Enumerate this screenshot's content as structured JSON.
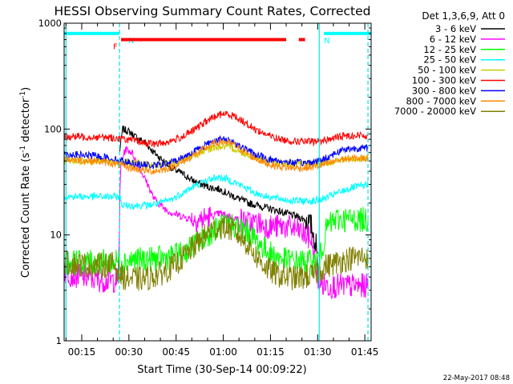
{
  "chart_data": {
    "type": "line",
    "title": "HESSI Observing Summary Count Rates, Corrected",
    "xlabel": "Start Time (30-Sep-14 00:09:22)",
    "ylabel_main": "Corrected Count Rate (s",
    "ylabel_sup1": "-1",
    "ylabel_mid": " detector",
    "ylabel_sup2": "-1",
    "ylabel_end": ")",
    "y_scale": "log",
    "ylim": [
      1,
      1000
    ],
    "xlim_minutes": [
      9.4,
      107.0
    ],
    "grid": false,
    "legend_placement": "right",
    "legend_header": "Det 1,3,6,9, Att 0",
    "footer_date": "22-May-2017 08:48",
    "x_ticks": [
      {
        "minute": 15,
        "label": "00:15"
      },
      {
        "minute": 30,
        "label": "00:30"
      },
      {
        "minute": 45,
        "label": "00:45"
      },
      {
        "minute": 60,
        "label": "01:00"
      },
      {
        "minute": 75,
        "label": "01:15"
      },
      {
        "minute": 90,
        "label": "01:30"
      },
      {
        "minute": 105,
        "label": "01:45"
      }
    ],
    "y_ticks": [
      {
        "value": 1,
        "label": "1"
      },
      {
        "value": 10,
        "label": "10"
      },
      {
        "value": 100,
        "label": "100"
      },
      {
        "value": 1000,
        "label": "1000"
      }
    ],
    "flags": [
      {
        "label": "N",
        "color": "#00ffff",
        "x_start": 9.4,
        "x_end": 27.0,
        "level": 800
      },
      {
        "label": "N",
        "color": "#00ffff",
        "x_start": 92.0,
        "x_end": 107.0,
        "level": 800
      },
      {
        "label": "F",
        "color": "#ff0000",
        "x_start": 27.5,
        "x_end": 80.0,
        "level": 700
      },
      {
        "label": "",
        "color": "#ff0000",
        "x_start": 84.0,
        "x_end": 86.0,
        "level": 700
      }
    ],
    "vertical_markers": [
      {
        "minute": 10.0,
        "style": "solid"
      },
      {
        "minute": 27.0,
        "style": "dashed"
      },
      {
        "minute": 90.5,
        "style": "solid"
      },
      {
        "minute": 106.0,
        "style": "dashed"
      }
    ],
    "series": [
      {
        "name": "3 - 6 keV",
        "color": "#000000",
        "x": [
          27.0,
          28.0,
          30.0,
          32.0,
          35.0,
          38.0,
          41.0,
          44.0,
          47.0,
          50.0,
          53.0,
          56.0,
          59.0,
          62.0,
          65.0,
          68.0,
          71.0,
          74.0,
          77.0,
          80.0,
          83.0,
          86.0,
          88.0,
          89.5,
          90.5
        ],
        "y": [
          60,
          100,
          95,
          85,
          75,
          60,
          50,
          42,
          38,
          33,
          30,
          28,
          27,
          24,
          22,
          20,
          19,
          18,
          17,
          16,
          15,
          14,
          12,
          8,
          3
        ]
      },
      {
        "name": "6 - 12 keV",
        "color": "#ff00ff",
        "x": [
          9.4,
          12.0,
          16.0,
          20.0,
          24.0,
          26.5,
          27.5,
          29.0,
          31.0,
          33.0,
          36.0,
          38.0,
          41.0,
          44.0,
          47.0,
          50.0,
          53.0,
          56.0,
          59.0,
          62.0,
          65.0,
          68.0,
          71.0,
          74.0,
          77.0,
          80.0,
          84.0,
          88.0,
          90.0,
          91.0,
          94.0,
          98.0,
          102.0,
          106.0
        ],
        "y": [
          4.5,
          4.2,
          4.0,
          3.8,
          3.7,
          3.8,
          50,
          65,
          60,
          45,
          30,
          22,
          18,
          16,
          15,
          14,
          14,
          15,
          16,
          15,
          14,
          13,
          13,
          12,
          12,
          12,
          11,
          9,
          4,
          3.4,
          3.3,
          3.3,
          3.3,
          3.3
        ]
      },
      {
        "name": "12 - 25 keV",
        "color": "#00ff00",
        "x": [
          9.4,
          13.0,
          17.0,
          21.0,
          25.0,
          28.0,
          32.0,
          36.0,
          40.0,
          44.0,
          48.0,
          52.0,
          56.0,
          59.0,
          62.0,
          65.0,
          68.0,
          71.0,
          74.0,
          77.0,
          80.0,
          83.0,
          86.0,
          89.0,
          91.0,
          93.0,
          96.0,
          100.0,
          104.0,
          106.0
        ],
        "y": [
          5.5,
          5.5,
          5.5,
          5.6,
          5.6,
          5.7,
          5.8,
          5.9,
          6.0,
          6.2,
          7.0,
          8.5,
          10.5,
          12.0,
          12.5,
          12.0,
          10.5,
          8.5,
          7.0,
          6.2,
          5.8,
          5.6,
          5.6,
          5.5,
          6.5,
          12,
          14,
          14,
          14,
          14
        ]
      },
      {
        "name": "25 - 50 keV",
        "color": "#00ffff",
        "x": [
          9.4,
          13.0,
          17.0,
          21.0,
          25.0,
          27.0,
          28.0,
          32.0,
          36.0,
          40.0,
          44.0,
          48.0,
          52.0,
          55.0,
          58.0,
          61.0,
          64.0,
          67.0,
          70.0,
          74.0,
          78.0,
          82.0,
          86.0,
          89.0,
          92.0,
          95.0,
          98.0,
          101.0,
          104.0,
          106.0
        ],
        "y": [
          23,
          23,
          23,
          23,
          23,
          23,
          19,
          19,
          19,
          20,
          22,
          26,
          30,
          33,
          35,
          34,
          31,
          28,
          25,
          23,
          22,
          21,
          21,
          21,
          22,
          24,
          26,
          28,
          29,
          30
        ]
      },
      {
        "name": "50 - 100 keV",
        "color": "#cccc00",
        "x": [
          9.4,
          14.0,
          19.0,
          24.0,
          29.0,
          34.0,
          38.0,
          42.0,
          46.0,
          50.0,
          54.0,
          57.0,
          60.0,
          63.0,
          66.0,
          70.0,
          74.0,
          78.0,
          82.0,
          86.0,
          90.0,
          93.0,
          96.0,
          100.0,
          104.0,
          106.0
        ],
        "y": [
          50,
          50,
          50,
          50,
          49,
          47,
          46,
          47,
          50,
          55,
          62,
          67,
          68,
          66,
          60,
          54,
          50,
          48,
          47,
          47,
          47,
          48,
          50,
          52,
          53,
          53
        ]
      },
      {
        "name": "100 - 300 keV",
        "color": "#ff0000",
        "x": [
          9.4,
          14.0,
          19.0,
          24.0,
          29.0,
          34.0,
          38.0,
          42.0,
          46.0,
          50.0,
          54.0,
          57.0,
          60.0,
          63.0,
          66.0,
          70.0,
          74.0,
          78.0,
          82.0,
          86.0,
          89.0,
          92.0,
          95.0,
          98.0,
          102.0,
          106.0
        ],
        "y": [
          85,
          85,
          84,
          83,
          80,
          75,
          72,
          75,
          82,
          95,
          115,
          130,
          140,
          135,
          120,
          100,
          88,
          80,
          77,
          76,
          76,
          78,
          82,
          86,
          87,
          87
        ]
      },
      {
        "name": "300 - 800 keV",
        "color": "#0000ff",
        "x": [
          9.4,
          14.0,
          19.0,
          24.0,
          29.0,
          34.0,
          38.0,
          42.0,
          46.0,
          50.0,
          54.0,
          57.0,
          60.0,
          63.0,
          66.0,
          70.0,
          74.0,
          78.0,
          82.0,
          86.0,
          89.0,
          92.0,
          95.0,
          98.0,
          102.0,
          106.0
        ],
        "y": [
          58,
          57,
          56,
          53,
          49,
          46,
          45,
          47,
          52,
          60,
          70,
          78,
          80,
          76,
          67,
          58,
          52,
          50,
          48,
          48,
          49,
          52,
          58,
          64,
          66,
          66
        ]
      },
      {
        "name": "800 - 7000 keV",
        "color": "#ff8800",
        "x": [
          9.4,
          14.0,
          19.0,
          24.0,
          29.0,
          34.0,
          38.0,
          42.0,
          46.0,
          50.0,
          54.0,
          57.0,
          60.0,
          63.0,
          66.0,
          70.0,
          74.0,
          78.0,
          82.0,
          86.0,
          89.0,
          92.0,
          95.0,
          98.0,
          102.0,
          106.0
        ],
        "y": [
          52,
          51,
          50,
          48,
          44,
          41,
          40,
          42,
          47,
          55,
          65,
          73,
          76,
          72,
          63,
          53,
          47,
          44,
          43,
          43,
          44,
          46,
          49,
          52,
          53,
          53
        ]
      },
      {
        "name": "7000 - 20000 keV",
        "color": "#808000",
        "x": [
          9.4,
          13.0,
          17.0,
          21.0,
          25.0,
          28.0,
          32.0,
          36.0,
          40.0,
          44.0,
          48.0,
          52.0,
          56.0,
          59.0,
          62.0,
          65.0,
          68.0,
          71.0,
          74.0,
          77.0,
          80.0,
          83.0,
          86.0,
          89.0,
          92.0,
          96.0,
          100.0,
          104.0,
          106.0
        ],
        "y": [
          5.5,
          5.3,
          5.2,
          5.2,
          5.3,
          4.0,
          3.8,
          3.9,
          4.3,
          5.0,
          6.5,
          8.5,
          11.0,
          12.0,
          11.5,
          10.0,
          8.0,
          6.0,
          4.8,
          4.2,
          4.0,
          3.9,
          4.0,
          4.2,
          5.0,
          5.5,
          6.0,
          6.2,
          6.2
        ]
      }
    ]
  }
}
